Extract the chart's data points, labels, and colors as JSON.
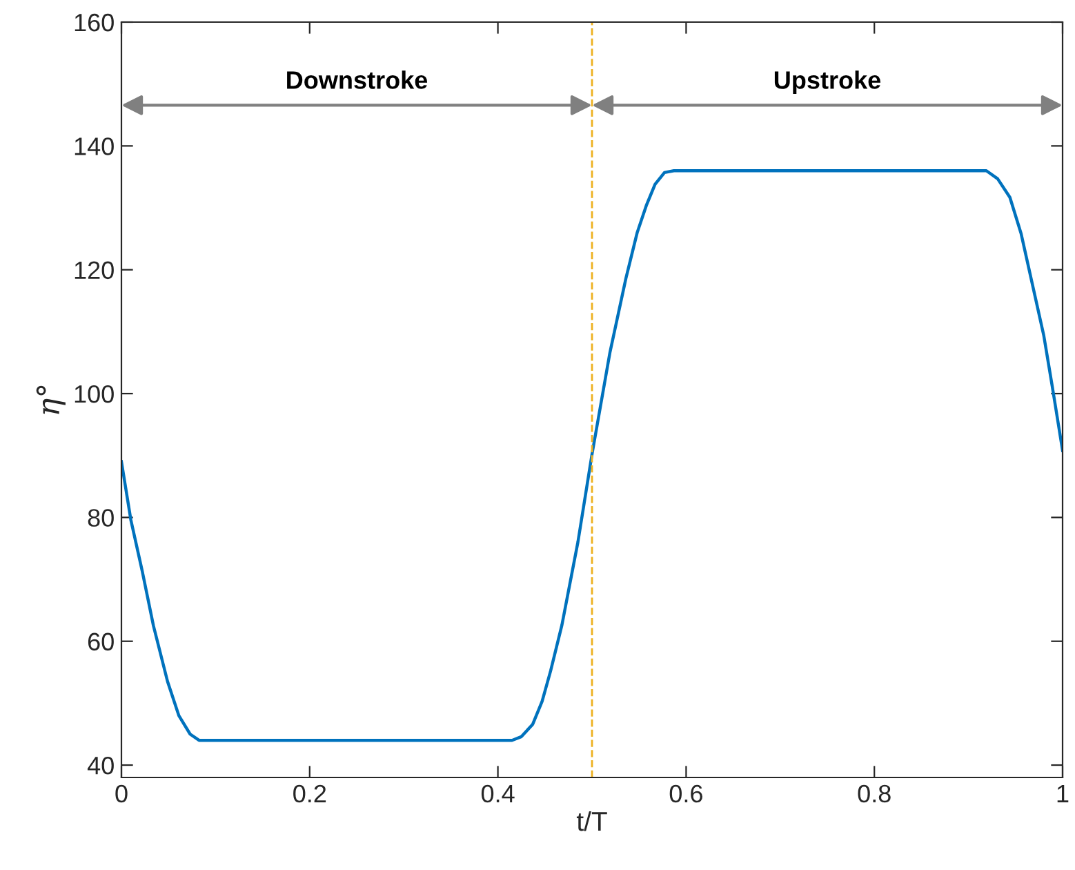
{
  "chart_data": {
    "type": "line",
    "xlabel": "t/T",
    "ylabel": "η°",
    "x": [
      0,
      0.01,
      0.022,
      0.034,
      0.049,
      0.061,
      0.073,
      0.0825,
      0.415,
      0.425,
      0.437,
      0.447,
      0.456,
      0.468,
      0.485,
      0.5,
      0.519,
      0.536,
      0.548,
      0.558,
      0.567,
      0.577,
      0.587,
      0.919,
      0.931,
      0.944,
      0.956,
      0.968,
      0.98,
      0.989,
      1.0
    ],
    "series": [
      {
        "color": "#0072bd",
        "values": [
          89,
          79.6,
          71.4,
          62.5,
          53.5,
          48,
          45,
          44,
          44,
          44.6,
          46.6,
          50.3,
          55.2,
          62.6,
          76,
          90.2,
          106.6,
          118.6,
          126,
          130.5,
          133.8,
          135.7,
          136,
          136,
          134.7,
          131.7,
          125.8,
          117.6,
          109.4,
          101.2,
          90.8
        ]
      }
    ],
    "xlim": [
      0,
      1
    ],
    "ylim": [
      38,
      160
    ],
    "xticks": [
      0,
      0.2,
      0.4,
      0.6,
      0.8,
      1
    ],
    "yticks": [
      40,
      60,
      80,
      100,
      120,
      140,
      160
    ],
    "grid": false,
    "legend": false,
    "marker": "none",
    "line_style": "solid",
    "ref_lines": [
      {
        "axis": "x",
        "value": 0.5,
        "color": "#edb120",
        "line_style": "dashed"
      }
    ],
    "annotations": [
      "Downstroke",
      "Upstroke"
    ]
  }
}
